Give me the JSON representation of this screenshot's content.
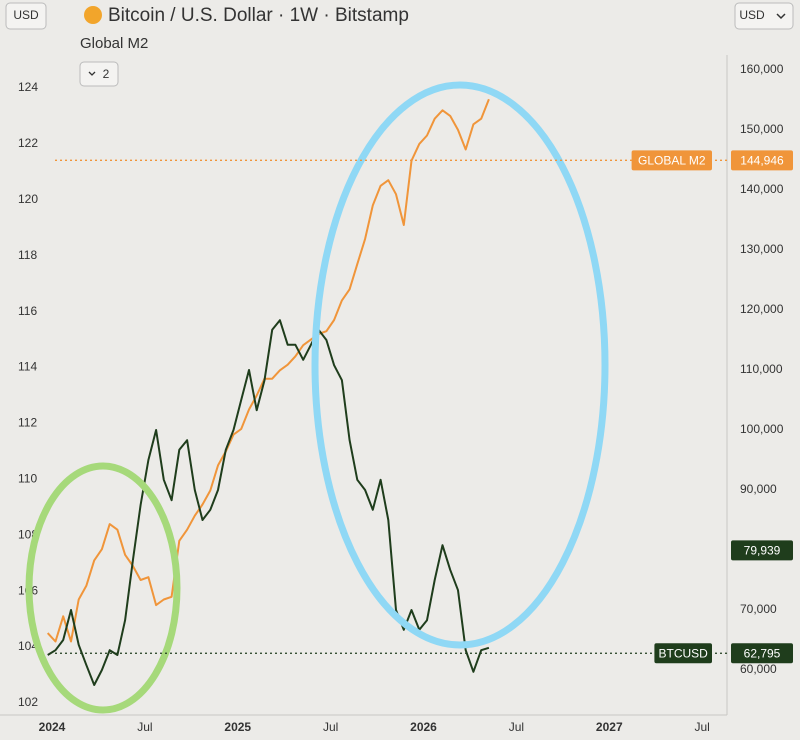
{
  "header": {
    "currency_left": "USD",
    "currency_right": "USD",
    "collapse_count": "2"
  },
  "chart_data": {
    "type": "line",
    "title": "Bitcoin / U.S. Dollar · 1W · Bitstamp",
    "categories": [
      "2024",
      null,
      null,
      null,
      null,
      null,
      null,
      null,
      null,
      null,
      null,
      null,
      "Jul",
      null,
      null,
      null,
      null,
      null,
      null,
      null,
      null,
      null,
      null,
      null,
      "2025",
      null,
      null,
      null,
      null,
      null,
      null,
      null,
      null,
      null,
      null,
      null,
      "Jul",
      null,
      null,
      null,
      null,
      null,
      null,
      null,
      null,
      null,
      null,
      null,
      "2026",
      null,
      null,
      null,
      null,
      null,
      null,
      null,
      null,
      null,
      null,
      null,
      "Jul",
      null,
      null,
      null,
      null,
      null,
      null,
      null,
      null,
      null,
      null,
      null,
      "2027",
      null,
      null,
      null,
      null,
      null,
      null,
      null,
      null,
      null,
      null,
      null,
      "Jul",
      null,
      null,
      null,
      null,
      null,
      null
    ],
    "series": [
      {
        "name": "Global M2",
        "color": "#f0953a",
        "axis": "y",
        "values": [
          null,
          104.5,
          104.2,
          105.1,
          104.2,
          105.7,
          106.2,
          107.1,
          107.5,
          108.4,
          108.2,
          107.3,
          106.9,
          106.4,
          106.5,
          105.5,
          105.7,
          105.8,
          107.8,
          108.2,
          108.7,
          109.1,
          109.6,
          110.5,
          111.0,
          111.6,
          111.8,
          112.5,
          113.0,
          113.6,
          113.6,
          113.9,
          114.1,
          114.4,
          114.8,
          115.0,
          115.2,
          115.3,
          115.7,
          116.4,
          116.8,
          117.7,
          118.6,
          119.8,
          120.5,
          120.7,
          120.2,
          119.1,
          121.4,
          122.0,
          122.3,
          122.9,
          123.2,
          123.0,
          122.5,
          121.8,
          122.7,
          122.9,
          123.6,
          null,
          null,
          null,
          null,
          null,
          null,
          null,
          null,
          null,
          null,
          null,
          null,
          null,
          null,
          null,
          null,
          null,
          null,
          null,
          null,
          null,
          null,
          null,
          null,
          null,
          null,
          null,
          null,
          null,
          null,
          null,
          null
        ]
      },
      {
        "name": "BTCUSD",
        "color": "#1f3d1c",
        "axis": "y2",
        "values": [
          null,
          62500,
          63300,
          65000,
          70000,
          64200,
          60800,
          57500,
          60000,
          63300,
          62500,
          68300,
          78300,
          87500,
          95000,
          100000,
          91700,
          88300,
          96700,
          98300,
          90000,
          85000,
          86700,
          90000,
          96700,
          100000,
          105000,
          110000,
          103300,
          108300,
          116700,
          118300,
          114200,
          114200,
          111700,
          114200,
          116700,
          115000,
          110800,
          108300,
          98300,
          91700,
          90000,
          86700,
          91700,
          85000,
          70000,
          66700,
          70000,
          66700,
          68300,
          75000,
          80800,
          76700,
          73300,
          63300,
          59700,
          63300,
          63700,
          null,
          null,
          null,
          null,
          null,
          null,
          null,
          null,
          null,
          null,
          null,
          null,
          null,
          null,
          null,
          null,
          null,
          null,
          null,
          null,
          null,
          null,
          null,
          null,
          null,
          null,
          null,
          null,
          null,
          null,
          null,
          null
        ]
      }
    ],
    "ylim": [
      101.57,
      125.18
    ],
    "yticks": [
      102,
      104,
      106,
      108,
      110,
      112,
      114,
      116,
      118,
      120,
      122,
      124
    ],
    "y2lim": [
      52500,
      162500
    ],
    "y2ticks": [
      {
        "value": 60000,
        "label": "60,000"
      },
      {
        "value": 70000,
        "label": "70,000"
      },
      {
        "value": 80000,
        "label": "80,000"
      },
      {
        "value": 90000,
        "label": "90,000"
      },
      {
        "value": 100000,
        "label": "100,000"
      },
      {
        "value": 110000,
        "label": "110,000"
      },
      {
        "value": 120000,
        "label": "120,000"
      },
      {
        "value": 130000,
        "label": "130,000"
      },
      {
        "value": 140000,
        "label": "140,000"
      },
      {
        "value": 150000,
        "label": "150,000"
      },
      {
        "value": 160000,
        "label": "160,000"
      }
    ],
    "price_labels": [
      {
        "label": "GLOBAL M2",
        "value": 144946,
        "value_label": "144,946",
        "color": "#f0953a"
      },
      {
        "value": 79939,
        "value_label": "79,939",
        "color": "#1f3d1c"
      },
      {
        "label": "BTCUSD",
        "value": 62795,
        "value_label": "62,795",
        "color": "#1f3d1c"
      }
    ],
    "grid": false
  }
}
